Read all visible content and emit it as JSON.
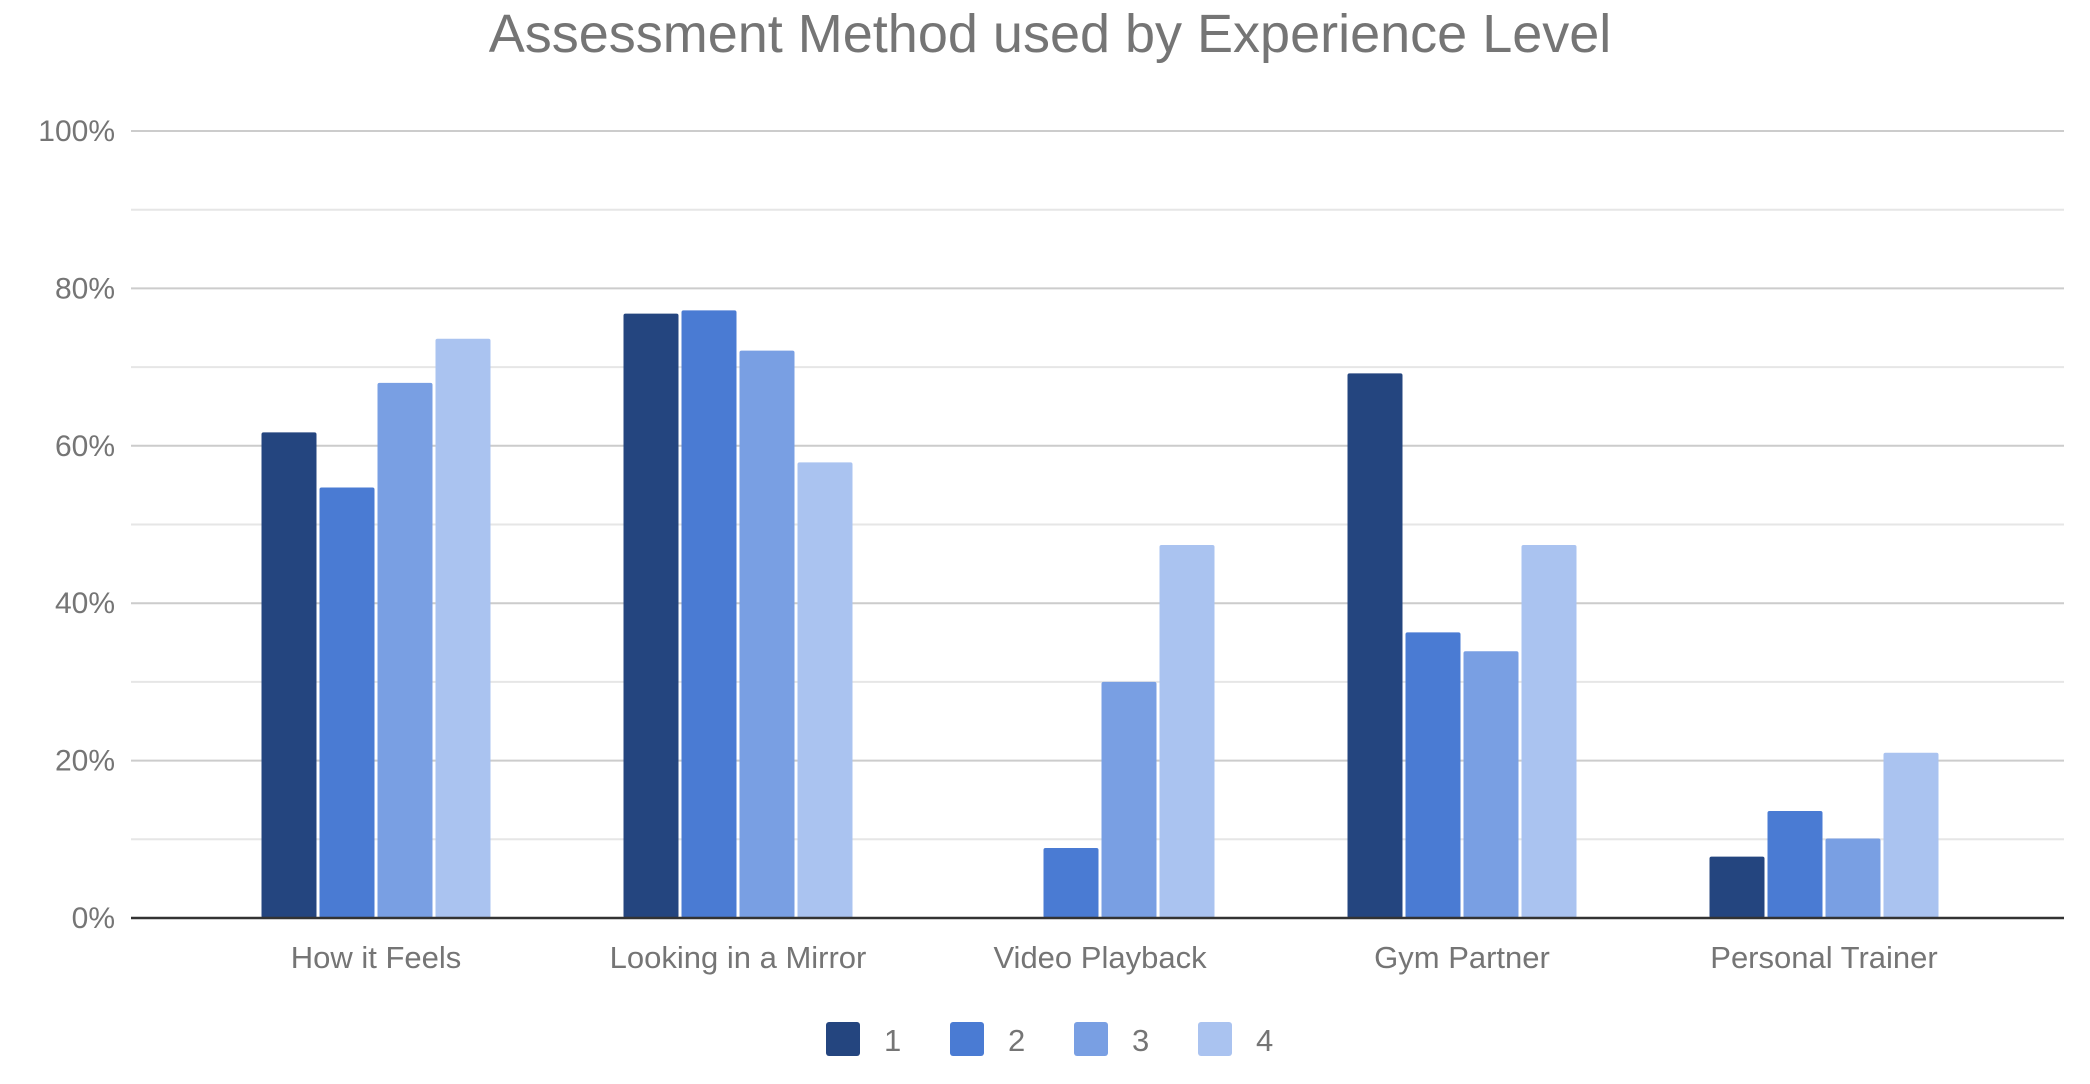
{
  "chart_data": {
    "type": "bar",
    "title": "Assessment Method used by Experience Level",
    "xlabel": "",
    "ylabel": "",
    "ylim": [
      0,
      100
    ],
    "yticks": [
      "0%",
      "20%",
      "40%",
      "60%",
      "80%",
      "100%"
    ],
    "grid": true,
    "legend_position": "bottom",
    "categories": [
      "How it Feels",
      "Looking in a Mirror",
      "Video Playback",
      "Gym Partner",
      "Personal Trainer"
    ],
    "series": [
      {
        "name": "1",
        "color": "#24457f",
        "values": [
          61.7,
          76.8,
          0,
          69.2,
          7.8
        ]
      },
      {
        "name": "2",
        "color": "#4a7bd3",
        "values": [
          54.7,
          77.2,
          8.9,
          36.3,
          13.6
        ]
      },
      {
        "name": "3",
        "color": "#799fe3",
        "values": [
          68.0,
          72.1,
          30.0,
          33.9,
          10.1
        ]
      },
      {
        "name": "4",
        "color": "#aac3f0",
        "values": [
          73.6,
          57.9,
          47.4,
          47.4,
          21.0
        ]
      }
    ]
  }
}
